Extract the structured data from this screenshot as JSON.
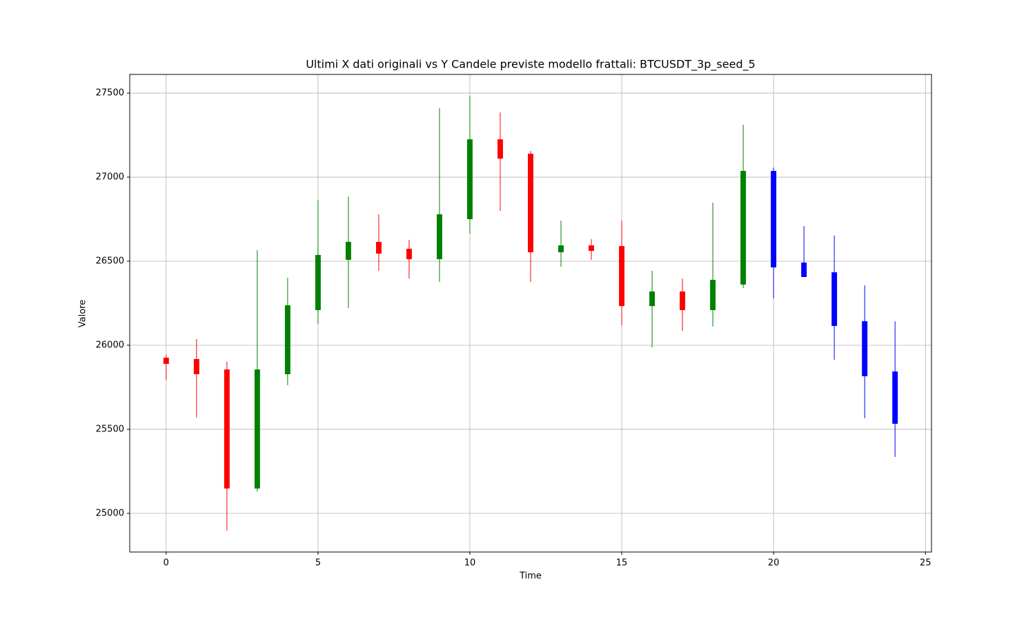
{
  "chart_data": {
    "type": "candlestick",
    "title": "Ultimi X dati originali vs Y Candele previste modello frattali: BTCUSDT_3p_seed_5",
    "x_label": "Time",
    "y_label": "Valore",
    "x": [
      0,
      1,
      2,
      3,
      4,
      5,
      6,
      7,
      8,
      9,
      10,
      11,
      12,
      13,
      14,
      15,
      16,
      17,
      18,
      19,
      20,
      21,
      22,
      23,
      24
    ],
    "open": [
      25926,
      25918,
      25856,
      25148,
      25828,
      26209,
      26508,
      26615,
      26574,
      26512,
      26750,
      27225,
      27139,
      26553,
      26594,
      26590,
      26233,
      26320,
      26209,
      26361,
      27037,
      26492,
      26434,
      26143,
      25844
    ],
    "high": [
      25943,
      26037,
      25902,
      26565,
      26402,
      26865,
      26885,
      26779,
      26627,
      27410,
      27483,
      27385,
      27156,
      26742,
      26631,
      26742,
      26443,
      26397,
      26848,
      27311,
      27057,
      26709,
      26652,
      26356,
      26143
    ],
    "low": [
      25795,
      25570,
      24898,
      25131,
      25762,
      26127,
      26221,
      26443,
      26397,
      26377,
      26664,
      26799,
      26377,
      26467,
      26508,
      26119,
      25988,
      26086,
      26111,
      26340,
      26279,
      26406,
      25914,
      25566,
      25336
    ],
    "close": [
      25889,
      25828,
      25148,
      25856,
      26238,
      26537,
      26615,
      26545,
      26512,
      26779,
      27225,
      27110,
      26553,
      26594,
      26561,
      26233,
      26320,
      26209,
      26389,
      27037,
      26463,
      26406,
      26115,
      25816,
      25533
    ],
    "colors": [
      "red",
      "red",
      "red",
      "green",
      "green",
      "green",
      "green",
      "red",
      "red",
      "green",
      "green",
      "red",
      "red",
      "green",
      "red",
      "red",
      "green",
      "red",
      "green",
      "green",
      "blue",
      "blue",
      "blue",
      "blue",
      "blue"
    ],
    "xlim": [
      -1.2,
      25.2
    ],
    "ylim": [
      24770,
      27611
    ],
    "xticks": [
      0,
      5,
      10,
      15,
      20,
      25
    ],
    "yticks": [
      25000,
      25500,
      26000,
      26500,
      27000,
      27500
    ],
    "grid": true
  }
}
